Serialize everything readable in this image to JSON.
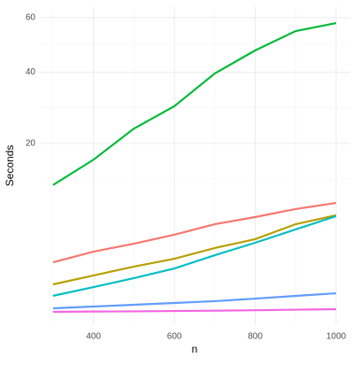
{
  "chart_data": {
    "type": "line",
    "x_label": "n",
    "y_label": "Seconds",
    "x": [
      300,
      400,
      500,
      600,
      700,
      800,
      900,
      1000
    ],
    "series": [
      {
        "color": "#F8766D",
        "values": [
          1.91,
          2.75,
          3.48,
          4.4,
          5.63,
          6.54,
          7.65,
          8.56
        ]
      },
      {
        "color": "#B79F00",
        "values": [
          0.65,
          1.08,
          1.61,
          2.17,
          3.07,
          3.93,
          5.63,
          6.78
        ]
      },
      {
        "color": "#00BA38",
        "values": [
          11.5,
          16.4,
          23.6,
          29.6,
          39.6,
          47.5,
          54.7,
          57.8
        ]
      },
      {
        "color": "#00BFC4",
        "values": [
          0.26,
          0.54,
          0.94,
          1.49,
          2.45,
          3.57,
          5.0,
          6.66
        ]
      },
      {
        "color": "#619CFF",
        "values": [
          0.034,
          0.053,
          0.076,
          0.104,
          0.137,
          0.19,
          0.257,
          0.33
        ]
      },
      {
        "color": "#F564E3",
        "values": [
          0.0085,
          0.01,
          0.011,
          0.013,
          0.015,
          0.018,
          0.022,
          0.026
        ]
      }
    ],
    "xlim": [
      265,
      1035
    ],
    "xticks": [
      400,
      600,
      800,
      1000
    ],
    "ylim": [
      0,
      64.3
    ],
    "yticks": [
      20,
      40,
      60
    ],
    "y_scale": "sqrt",
    "grid": true
  }
}
